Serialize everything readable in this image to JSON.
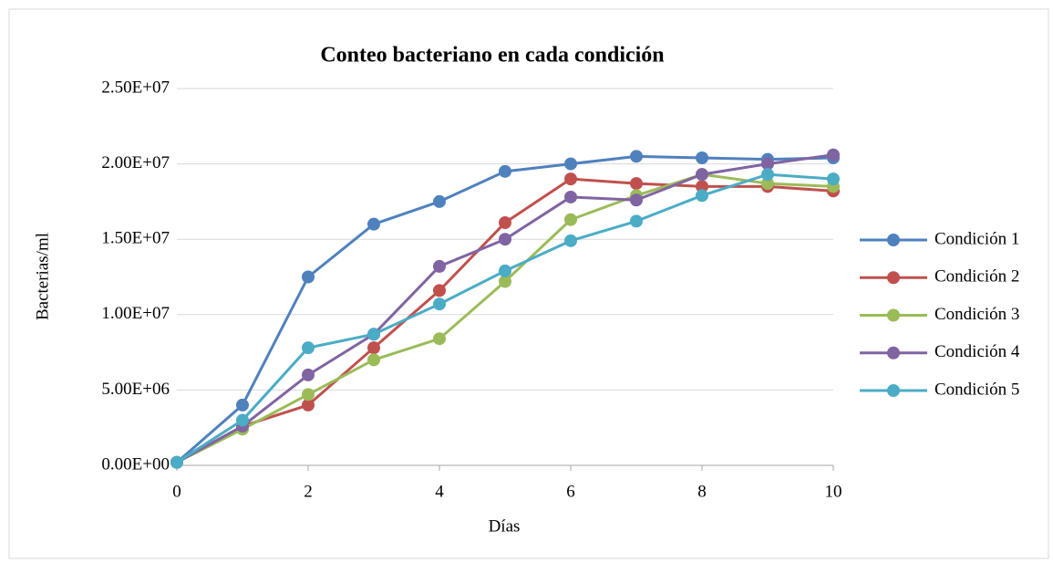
{
  "chart_data": {
    "type": "line",
    "title": "Conteo bacteriano en cada condición",
    "x_label": "Días",
    "y_label": "Bacterias/ml",
    "x": [
      0,
      1,
      2,
      3,
      4,
      5,
      6,
      7,
      8,
      9,
      10
    ],
    "xlim": [
      0,
      10
    ],
    "xticks": [
      0,
      2,
      4,
      6,
      8,
      10
    ],
    "ylim": [
      0,
      25000000
    ],
    "yticks": [
      {
        "value": 0,
        "label": "0.00E+00"
      },
      {
        "value": 5000000,
        "label": "5.00E+06"
      },
      {
        "value": 10000000,
        "label": "1.00E+07"
      },
      {
        "value": 15000000,
        "label": "1.50E+07"
      },
      {
        "value": 20000000,
        "label": "2.00E+07"
      },
      {
        "value": 25000000,
        "label": "2.50E+07"
      }
    ],
    "grid": true,
    "legend": "right",
    "series": [
      {
        "name": "Condición 1",
        "color": "#4f81bd",
        "values": [
          200000,
          4000000,
          12500000,
          16000000,
          17500000,
          19500000,
          20000000,
          20500000,
          20400000,
          20300000,
          20400000
        ]
      },
      {
        "name": "Condición 2",
        "color": "#c0504d",
        "values": [
          200000,
          2600000,
          4000000,
          7800000,
          11600000,
          16100000,
          19000000,
          18700000,
          18500000,
          18500000,
          18200000
        ]
      },
      {
        "name": "Condición 3",
        "color": "#9bbb59",
        "values": [
          200000,
          2400000,
          4700000,
          7000000,
          8400000,
          12200000,
          16300000,
          17900000,
          19300000,
          18700000,
          18500000
        ]
      },
      {
        "name": "Condición 4",
        "color": "#8064a2",
        "values": [
          200000,
          2600000,
          6000000,
          8700000,
          13200000,
          15000000,
          17800000,
          17600000,
          19300000,
          20000000,
          20600000
        ]
      },
      {
        "name": "Condición 5",
        "color": "#4bacc6",
        "values": [
          200000,
          3000000,
          7800000,
          8700000,
          10700000,
          12900000,
          14900000,
          16200000,
          17900000,
          19300000,
          19000000
        ]
      }
    ]
  }
}
